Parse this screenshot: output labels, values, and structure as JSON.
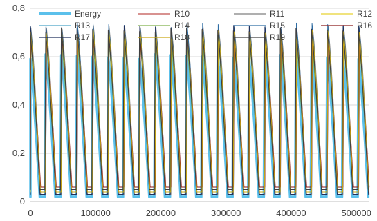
{
  "chart_data": {
    "type": "line",
    "title": "",
    "xlabel": "",
    "ylabel": "",
    "xlim": [
      0,
      520000
    ],
    "ylim": [
      0,
      0.8
    ],
    "x_ticks": [
      0,
      100000,
      200000,
      300000,
      400000,
      500000
    ],
    "x_tick_labels": [
      "0",
      "100000",
      "200000",
      "300000",
      "400000",
      "500000"
    ],
    "y_ticks": [
      0,
      0.2,
      0.4,
      0.6,
      0.8
    ],
    "y_tick_labels": [
      "0",
      "0,2",
      "0,4",
      "0,6",
      "0,8"
    ],
    "grid": "horizontal",
    "legend_position": "top",
    "cycle_period": 24000,
    "cycle_count": 22,
    "peak_x": [
      0,
      24000,
      48000,
      72000,
      96000,
      120000,
      144000,
      168000,
      192000,
      216000,
      240000,
      264000,
      288000,
      312000,
      336000,
      360000,
      384000,
      408000,
      432000,
      456000,
      480000,
      504000
    ],
    "trough_x": [
      15000,
      39000,
      63000,
      87000,
      111000,
      135000,
      159000,
      183000,
      207000,
      231000,
      255000,
      279000,
      303000,
      327000,
      351000,
      375000,
      399000,
      423000,
      447000,
      471000,
      495000,
      519000
    ],
    "series": [
      {
        "name": "Energy",
        "color": "#5bc0eb",
        "peak": 0.6,
        "trough": 0.02,
        "width": 3.5
      },
      {
        "name": "R10",
        "color": "#c0504d",
        "peak": 0.71,
        "trough": 0.04,
        "width": 1
      },
      {
        "name": "R11",
        "color": "#7f7f7f",
        "peak": 0.72,
        "trough": 0.03,
        "width": 1
      },
      {
        "name": "R12",
        "color": "#e8d230",
        "peak": 0.7,
        "trough": 0.05,
        "width": 1
      },
      {
        "name": "R13",
        "color": "#4aa3c8",
        "peak": 0.66,
        "trough": 0.04,
        "width": 1
      },
      {
        "name": "R14",
        "color": "#7fb04a",
        "peak": 0.68,
        "trough": 0.05,
        "width": 1
      },
      {
        "name": "R15",
        "color": "#2e6da4",
        "peak": 0.73,
        "trough": 0.04,
        "width": 1
      },
      {
        "name": "R16",
        "color": "#8b1a1a",
        "peak": 0.67,
        "trough": 0.06,
        "width": 1
      },
      {
        "name": "R17",
        "color": "#1f2f5a",
        "peak": 0.72,
        "trough": 0.03,
        "width": 1
      },
      {
        "name": "R18",
        "color": "#c9a814",
        "peak": 0.7,
        "trough": 0.04,
        "width": 1
      },
      {
        "name": "R19",
        "color": "#404040",
        "peak": 0.71,
        "trough": 0.05,
        "width": 1
      }
    ]
  }
}
